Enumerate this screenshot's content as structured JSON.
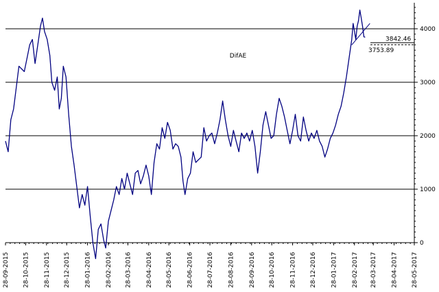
{
  "chart_data": {
    "type": "line",
    "title": "DifAE",
    "xlabel": "",
    "ylabel": "",
    "xlim": [
      "2015-09-28",
      "2017-05-28"
    ],
    "ylim": [
      -300,
      4500
    ],
    "yticks": [
      0,
      1000,
      2000,
      3000,
      4000
    ],
    "ytick_labels": [
      "0",
      "1000",
      "2000",
      "3000",
      "4000"
    ],
    "xtick_labels": [
      "28-09-2015",
      "28-10-2015",
      "28-11-2015",
      "28-12-2015",
      "28-01-2016",
      "28-02-2016",
      "28-03-2016",
      "28-04-2016",
      "28-05-2016",
      "28-06-2016",
      "28-07-2016",
      "28-08-2016",
      "28-09-2016",
      "28-10-2016",
      "28-11-2016",
      "28-12-2016",
      "28-01-2017",
      "28-02-2017",
      "28-03-2017",
      "28-04-2017",
      "28-05-2017"
    ],
    "grid": "horizontal",
    "grid_lines_at": [
      1000,
      2000,
      3000,
      4000
    ],
    "series": [
      {
        "name": "",
        "color": "#000080",
        "points": [
          [
            "2015-09-28",
            1900
          ],
          [
            "2015-10-02",
            1700
          ],
          [
            "2015-10-06",
            2300
          ],
          [
            "2015-10-10",
            2500
          ],
          [
            "2015-10-14",
            2900
          ],
          [
            "2015-10-18",
            3300
          ],
          [
            "2015-10-22",
            3250
          ],
          [
            "2015-10-26",
            3200
          ],
          [
            "2015-10-30",
            3450
          ],
          [
            "2015-11-03",
            3700
          ],
          [
            "2015-11-07",
            3800
          ],
          [
            "2015-11-11",
            3350
          ],
          [
            "2015-11-15",
            3700
          ],
          [
            "2015-11-19",
            4050
          ],
          [
            "2015-11-22",
            4200
          ],
          [
            "2015-11-25",
            3950
          ],
          [
            "2015-11-29",
            3800
          ],
          [
            "2015-12-03",
            3500
          ],
          [
            "2015-12-06",
            3000
          ],
          [
            "2015-12-10",
            2850
          ],
          [
            "2015-12-14",
            3100
          ],
          [
            "2015-12-17",
            2500
          ],
          [
            "2015-12-20",
            2700
          ],
          [
            "2015-12-23",
            3300
          ],
          [
            "2015-12-27",
            3100
          ],
          [
            "2015-12-31",
            2400
          ],
          [
            "2016-01-04",
            1800
          ],
          [
            "2016-01-08",
            1450
          ],
          [
            "2016-01-12",
            1050
          ],
          [
            "2016-01-16",
            650
          ],
          [
            "2016-01-20",
            900
          ],
          [
            "2016-01-24",
            700
          ],
          [
            "2016-01-28",
            1050
          ],
          [
            "2016-02-01",
            500
          ],
          [
            "2016-02-05",
            0
          ],
          [
            "2016-02-09",
            -300
          ],
          [
            "2016-02-13",
            250
          ],
          [
            "2016-02-17",
            350
          ],
          [
            "2016-02-21",
            50
          ],
          [
            "2016-02-24",
            -100
          ],
          [
            "2016-02-28",
            400
          ],
          [
            "2016-03-03",
            600
          ],
          [
            "2016-03-07",
            800
          ],
          [
            "2016-03-11",
            1050
          ],
          [
            "2016-03-15",
            900
          ],
          [
            "2016-03-19",
            1200
          ],
          [
            "2016-03-23",
            1000
          ],
          [
            "2016-03-27",
            1300
          ],
          [
            "2016-03-31",
            1100
          ],
          [
            "2016-04-04",
            900
          ],
          [
            "2016-04-08",
            1300
          ],
          [
            "2016-04-12",
            1350
          ],
          [
            "2016-04-16",
            1100
          ],
          [
            "2016-04-20",
            1250
          ],
          [
            "2016-04-24",
            1450
          ],
          [
            "2016-04-28",
            1250
          ],
          [
            "2016-05-02",
            900
          ],
          [
            "2016-05-06",
            1500
          ],
          [
            "2016-05-10",
            1850
          ],
          [
            "2016-05-14",
            1750
          ],
          [
            "2016-05-18",
            2150
          ],
          [
            "2016-05-22",
            1950
          ],
          [
            "2016-05-26",
            2250
          ],
          [
            "2016-05-30",
            2100
          ],
          [
            "2016-06-03",
            1750
          ],
          [
            "2016-06-07",
            1850
          ],
          [
            "2016-06-11",
            1800
          ],
          [
            "2016-06-15",
            1600
          ],
          [
            "2016-06-18",
            1150
          ],
          [
            "2016-06-21",
            900
          ],
          [
            "2016-06-25",
            1200
          ],
          [
            "2016-06-29",
            1300
          ],
          [
            "2016-07-03",
            1700
          ],
          [
            "2016-07-07",
            1500
          ],
          [
            "2016-07-11",
            1550
          ],
          [
            "2016-07-15",
            1600
          ],
          [
            "2016-07-19",
            2150
          ],
          [
            "2016-07-23",
            1900
          ],
          [
            "2016-07-27",
            2000
          ],
          [
            "2016-07-31",
            2050
          ],
          [
            "2016-08-04",
            1850
          ],
          [
            "2016-08-08",
            2050
          ],
          [
            "2016-08-12",
            2300
          ],
          [
            "2016-08-16",
            2650
          ],
          [
            "2016-08-20",
            2300
          ],
          [
            "2016-08-24",
            2000
          ],
          [
            "2016-08-28",
            1800
          ],
          [
            "2016-09-01",
            2100
          ],
          [
            "2016-09-05",
            1900
          ],
          [
            "2016-09-09",
            1700
          ],
          [
            "2016-09-13",
            2050
          ],
          [
            "2016-09-17",
            1950
          ],
          [
            "2016-09-21",
            2050
          ],
          [
            "2016-09-25",
            1900
          ],
          [
            "2016-09-29",
            2100
          ],
          [
            "2016-10-03",
            1800
          ],
          [
            "2016-10-07",
            1300
          ],
          [
            "2016-10-11",
            1700
          ],
          [
            "2016-10-15",
            2200
          ],
          [
            "2016-10-19",
            2450
          ],
          [
            "2016-10-23",
            2200
          ],
          [
            "2016-10-27",
            1950
          ],
          [
            "2016-10-31",
            2000
          ],
          [
            "2016-11-04",
            2400
          ],
          [
            "2016-11-08",
            2700
          ],
          [
            "2016-11-12",
            2550
          ],
          [
            "2016-11-16",
            2350
          ],
          [
            "2016-11-20",
            2100
          ],
          [
            "2016-11-24",
            1850
          ],
          [
            "2016-11-28",
            2100
          ],
          [
            "2016-12-02",
            2400
          ],
          [
            "2016-12-06",
            2000
          ],
          [
            "2016-12-10",
            1900
          ],
          [
            "2016-12-14",
            2350
          ],
          [
            "2016-12-18",
            2100
          ],
          [
            "2016-12-22",
            1900
          ],
          [
            "2016-12-26",
            2050
          ],
          [
            "2016-12-30",
            1950
          ],
          [
            "2017-01-03",
            2100
          ],
          [
            "2017-01-07",
            1900
          ],
          [
            "2017-01-11",
            1800
          ],
          [
            "2017-01-15",
            1600
          ],
          [
            "2017-01-19",
            1750
          ],
          [
            "2017-01-23",
            1950
          ],
          [
            "2017-01-27",
            2050
          ],
          [
            "2017-01-31",
            2200
          ],
          [
            "2017-02-04",
            2400
          ],
          [
            "2017-02-08",
            2550
          ],
          [
            "2017-02-12",
            2800
          ],
          [
            "2017-02-16",
            3100
          ],
          [
            "2017-02-20",
            3450
          ],
          [
            "2017-02-24",
            3800
          ],
          [
            "2017-02-26",
            4100
          ],
          [
            "2017-02-28",
            3950
          ],
          [
            "2017-03-02",
            3800
          ],
          [
            "2017-03-04",
            4050
          ],
          [
            "2017-03-06",
            4150
          ],
          [
            "2017-03-08",
            4350
          ],
          [
            "2017-03-10",
            4200
          ],
          [
            "2017-03-12",
            4050
          ],
          [
            "2017-03-14",
            3850
          ],
          [
            "2017-03-16",
            3842.46
          ]
        ]
      }
    ],
    "annotations": [
      {
        "text": "3842.46",
        "value": 3842.46
      },
      {
        "text": "3753.89",
        "value": 3753.89
      }
    ],
    "trendline": {
      "from": [
        "2017-02-24",
        3700
      ],
      "to": [
        "2017-03-23",
        4100
      ]
    }
  }
}
